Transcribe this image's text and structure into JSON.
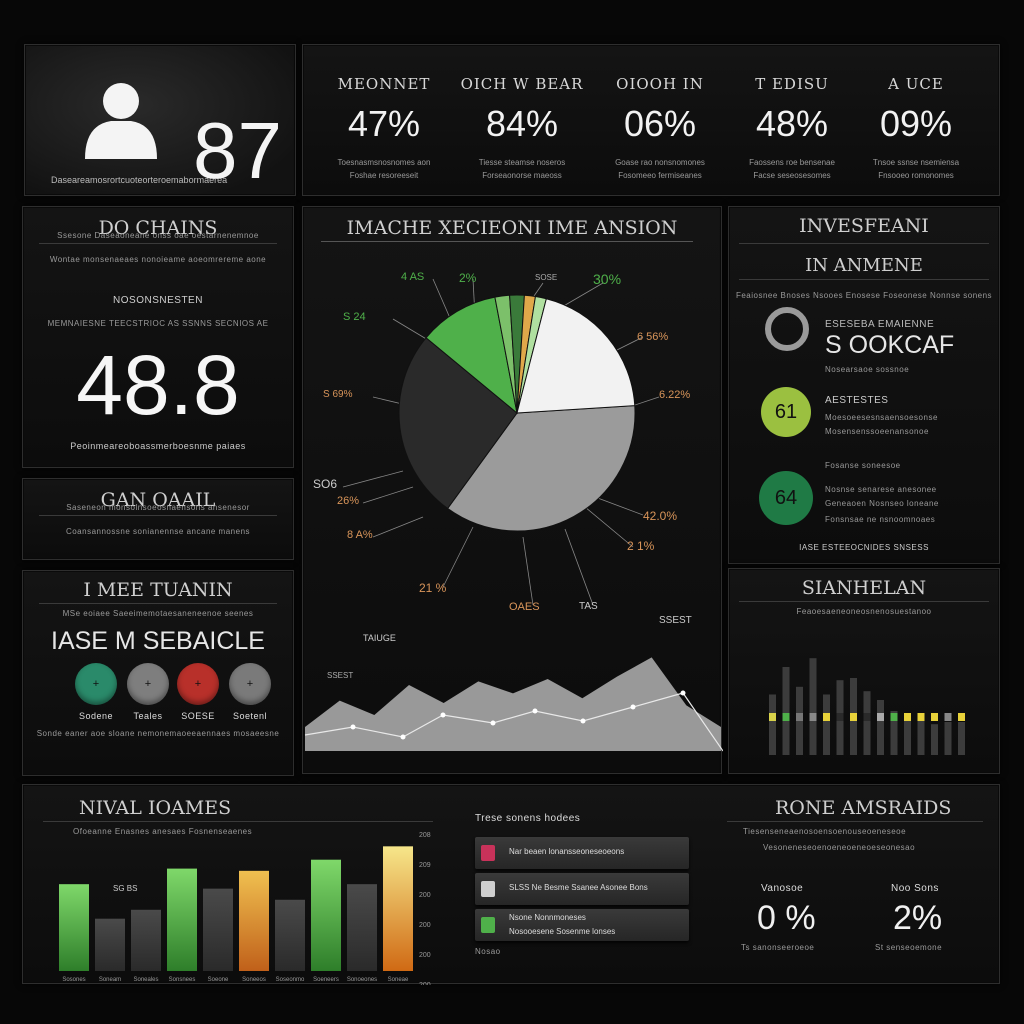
{
  "colors": {
    "green": "#4fb04a",
    "dark_green": "#1f7a45",
    "red": "#b8302a",
    "amber": "#e6a12a",
    "yellow": "#e8d23a",
    "lime": "#9bc040"
  },
  "profile": {
    "value": "87",
    "caption": "Daseareamosrortcuoteorteroemabormaerea"
  },
  "kpis": [
    {
      "label": "MEONNET",
      "value": "47%",
      "caption1": "Toesnasmsnosnomes aon",
      "caption2": "Foshae resoreeseit"
    },
    {
      "label": "OICH W BEAR",
      "value": "84%",
      "caption1": "Tiesse steamse noseros",
      "caption2": "Forseaonorse maeoss"
    },
    {
      "label": "OIOOH IN",
      "value": "06%",
      "caption1": "Goase rao nonsnomones",
      "caption2": "Fosomeeo fermiseanes"
    },
    {
      "label": "T EDISU",
      "value": "48%",
      "caption1": "Faossens roe bensenae",
      "caption2": "Facse seseosesomes"
    },
    {
      "label": "A UCE",
      "value": "09%",
      "caption1": "Tnsoe ssnse nsemiensa",
      "caption2": "Fnsooeo romonomes"
    }
  ],
  "do_chains": {
    "title": "DO CHAINS",
    "sub1": "Ssesone Daseaoneane onss oae oestarnenemnoe",
    "sub2": "Wontae monsenaeaes nonoieame aoeomrereme aone",
    "label": "NOSONSNESTEN",
    "label2": "MEMNAIESNE TEECSTRIOC AS SSNNS SECNIOS AE",
    "value": "48.8",
    "caption": "Peoinmeareoboassmerboesnme paiaes"
  },
  "gan": {
    "title": "GAN OAAIL",
    "sub1": "Saseneon monsolnsoeosnaensons ansenesor",
    "sub2": "Coansannossne sonianennse ancane manens"
  },
  "service": {
    "title": "I MEE TUANIN",
    "sub": "MSe eoiaee Saeeimemotaesaneneenoe seenes",
    "heading": "IASE M SEBAICLE",
    "buttons": [
      {
        "label": "Sodene",
        "color": "#2a8a6a",
        "icon": "+"
      },
      {
        "label": "Teales",
        "color": "#7e7e7e",
        "icon": "+"
      },
      {
        "label": "SOESE",
        "color": "#b8302a",
        "icon": "+"
      },
      {
        "label": "Soetenl",
        "color": "#7a7a7a",
        "icon": "+"
      }
    ],
    "footer": "Sonde eaner aoe sloane nemonemaoeeaennaes mosaeesne"
  },
  "pie_panel": {
    "title": "IMACHE XECIEONI IME ANSION",
    "labels": [
      {
        "text": "4 AS",
        "color": "#4fb04a"
      },
      {
        "text": "2%",
        "color": "#4fb04a"
      },
      {
        "text": "SOSE",
        "color": "#aaa"
      },
      {
        "text": "30%",
        "color": "#4fb04a"
      },
      {
        "text": "S 24",
        "color": "#4fb04a"
      },
      {
        "text": "6 56%",
        "color": "#d9955a"
      },
      {
        "text": "S 69%",
        "color": "#d9955a"
      },
      {
        "text": "6.22%",
        "color": "#d9955a"
      },
      {
        "text": "SO6",
        "color": "#ccc"
      },
      {
        "text": "26%",
        "color": "#d9955a"
      },
      {
        "text": "8 A%",
        "color": "#d9955a"
      },
      {
        "text": "42.0%",
        "color": "#d9955a"
      },
      {
        "text": "2 1%",
        "color": "#d9955a"
      },
      {
        "text": "21 %",
        "color": "#d9955a"
      },
      {
        "text": "OAES",
        "color": "#aaa"
      },
      {
        "text": "TAS",
        "color": "#aaa"
      },
      {
        "text": "SSEST",
        "color": "#ccc"
      },
      {
        "text": "TAIUGE",
        "color": "#ccc"
      },
      {
        "text": "SSEST",
        "color": "#ccc"
      }
    ],
    "slices": [
      {
        "value": 36,
        "color": "#9b9b9b"
      },
      {
        "value": 26,
        "color": "#2a2a2a"
      },
      {
        "value": 11,
        "color": "#4fb04a"
      },
      {
        "value": 2,
        "color": "#7cc06a"
      },
      {
        "value": 2,
        "color": "#3a7a3a"
      },
      {
        "value": 1.5,
        "color": "#e0a84a"
      },
      {
        "value": 1.5,
        "color": "#b0e0a0"
      },
      {
        "value": 20,
        "color": "#f2f2f2"
      }
    ],
    "area_values": [
      20,
      42,
      30,
      55,
      40,
      58,
      48,
      60,
      44,
      62,
      78,
      38,
      20
    ]
  },
  "right_panel": {
    "title": "INVESFEANI",
    "sub": "IN ANMENE",
    "desc": "Feaiosnee Bnoses Nsooes Enosese Foseonese Nonnse sonens",
    "stat_label": "ESESEBA EMAIENNE",
    "stat_value": "S OOKCAF",
    "stat_sub": "Nosearsaoe sossnoe",
    "items": [
      {
        "badge": "61",
        "color": "#9bc040",
        "title": "AESTESTES",
        "line1": "Moesoeesesnsaensoesonse",
        "line2": "Mosensenssoeenansonoe",
        "line3": "Fosanse soneesoe"
      },
      {
        "badge": "64",
        "color": "#1f7a45",
        "title": "Nosnse senarese anesonee",
        "line1": "Geneaoen Nosnseo loneane",
        "line2": "Fonsnsae ne nsnoomnoaes"
      }
    ],
    "footer": "IASE ESTEEOCNIDES SNSESS"
  },
  "right_panel2": {
    "title": "SIANHELAN",
    "sub": "Feaoesaeneoneosnenosuestanoo",
    "chart_bars": [
      {
        "dark": 0.55,
        "mark": "#d8d24a"
      },
      {
        "dark": 0.8,
        "mark": "#4fb04a"
      },
      {
        "dark": 0.62,
        "mark": "#777"
      },
      {
        "dark": 0.88,
        "mark": "#888"
      },
      {
        "dark": 0.55,
        "mark": "#e8d23a"
      },
      {
        "dark": 0.68,
        "mark": "#2a2a2a"
      },
      {
        "dark": 0.7,
        "mark": "#e8d23a"
      },
      {
        "dark": 0.58,
        "mark": "#2a2a2a"
      },
      {
        "dark": 0.5,
        "mark": "#aaa"
      },
      {
        "dark": 0.4,
        "mark": "#4fb04a"
      },
      {
        "dark": 0.35,
        "mark": "#e8d23a"
      },
      {
        "dark": 0.38,
        "mark": "#e8d23a"
      },
      {
        "dark": 0.28,
        "mark": "#e8d23a"
      },
      {
        "dark": 0.3,
        "mark": "#888"
      },
      {
        "dark": 0.3,
        "mark": "#e8d23a"
      }
    ]
  },
  "bottom": {
    "title_left": "NIVAL IOAMES",
    "sub_left": "Ofoeanne Enasnes anesaes Fosnenseaenes",
    "bars": [
      {
        "value": 0.78,
        "style": "green"
      },
      {
        "value": 0.47,
        "style": "dark"
      },
      {
        "value": 0.55,
        "style": "dark"
      },
      {
        "value": 0.92,
        "style": "green"
      },
      {
        "value": 0.74,
        "style": "dark"
      },
      {
        "value": 0.9,
        "style": "amber"
      },
      {
        "value": 0.64,
        "style": "dark"
      },
      {
        "value": 1.0,
        "style": "green"
      },
      {
        "value": 0.78,
        "style": "dark"
      },
      {
        "value": 1.12,
        "style": "yellow"
      }
    ],
    "bar_label": "SG BS",
    "axis_labels": [
      "208",
      "209",
      "200",
      "200",
      "200",
      "200"
    ],
    "x_labels": [
      "Sosones",
      "Soneam",
      "Soneales",
      "Sonsnees",
      "Soeone",
      "Soneeos",
      "Soseonmo",
      "Soeneers",
      "Sonoeones",
      "Soneae"
    ],
    "legend_title": "Trese sonens hodees",
    "legend_items": [
      {
        "text": "Nar beaen lonansseoneseoeons",
        "color": "#c8325a"
      },
      {
        "text": "SLSS Ne Besme Ssanee Asonee Bons",
        "color": "#cfcfcf",
        "bold": "SLSS"
      },
      {
        "text": "Nsone Nonnmoneses",
        "text2": "Nosooesene Sosenme lonses",
        "color": "#4fb04a"
      }
    ],
    "legend_note": "Nosao",
    "title_right": "RONE AMSRAIDS",
    "sub_right1": "Tiesenseneaenosoensoenouseoeneseoe",
    "sub_right2": "Vesoneneseoenoeneoeneoeseonesao",
    "stat1_label": "Vanosoe",
    "stat1_value": "0 %",
    "stat1_sub": "Ts sanonseeroeoe",
    "stat2_label": "Noo Sons",
    "stat2_value": "2%",
    "stat2_sub": "St senseoemone"
  }
}
